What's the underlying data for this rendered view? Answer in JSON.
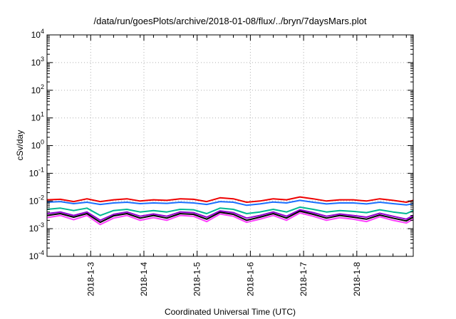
{
  "chart_data": {
    "type": "line",
    "title": "/data/run/goesPlots/archive/2018-01-08/flux/../bryn/7daysMars.plot",
    "xlabel": "Coordinated Universal Time (UTC)",
    "ylabel": "cSv/day",
    "y_scale": "log",
    "ylim": [
      0.0001,
      10000
    ],
    "y_ticks": [
      {
        "base": "10",
        "exp": "4"
      },
      {
        "base": "10",
        "exp": "3"
      },
      {
        "base": "10",
        "exp": "2"
      },
      {
        "base": "10",
        "exp": "1"
      },
      {
        "base": "10",
        "exp": "0"
      },
      {
        "base": "10",
        "exp": "-1"
      },
      {
        "base": "10",
        "exp": "-2"
      },
      {
        "base": "10",
        "exp": "-3"
      },
      {
        "base": "10",
        "exp": "-4"
      }
    ],
    "x_ticks": [
      "2018-1-3",
      "2018-1-4",
      "2018-1-5",
      "2018-1-6",
      "2018-1-7",
      "2018-1-8"
    ],
    "x_range_days": [
      0.0,
      6.88
    ],
    "x_tick_days": [
      0.82,
      1.82,
      2.82,
      3.82,
      4.82,
      5.82
    ],
    "grid": true,
    "legend": "none",
    "x": [
      0.0,
      0.25,
      0.5,
      0.75,
      1.0,
      1.25,
      1.5,
      1.75,
      2.0,
      2.25,
      2.5,
      2.75,
      3.0,
      3.25,
      3.5,
      3.75,
      4.0,
      4.25,
      4.5,
      4.75,
      5.0,
      5.25,
      5.5,
      5.75,
      6.0,
      6.25,
      6.5,
      6.75,
      6.88
    ],
    "series": [
      {
        "color": "#ee0000",
        "values": [
          0.011,
          0.0115,
          0.0095,
          0.012,
          0.0095,
          0.011,
          0.012,
          0.01,
          0.011,
          0.0105,
          0.012,
          0.0115,
          0.0095,
          0.013,
          0.012,
          0.009,
          0.01,
          0.012,
          0.011,
          0.014,
          0.012,
          0.01,
          0.011,
          0.011,
          0.01,
          0.012,
          0.0105,
          0.009,
          0.0105
        ]
      },
      {
        "color": "#1a6fff",
        "values": [
          0.009,
          0.0095,
          0.008,
          0.009,
          0.0075,
          0.0085,
          0.009,
          0.008,
          0.0085,
          0.0082,
          0.009,
          0.0085,
          0.0075,
          0.0095,
          0.009,
          0.007,
          0.0078,
          0.0092,
          0.0085,
          0.0105,
          0.009,
          0.0078,
          0.0085,
          0.0085,
          0.0078,
          0.009,
          0.008,
          0.0072,
          0.008
        ]
      },
      {
        "color": "#00b892",
        "values": [
          0.005,
          0.0055,
          0.0045,
          0.0055,
          0.003,
          0.0045,
          0.005,
          0.004,
          0.0045,
          0.004,
          0.005,
          0.0048,
          0.0035,
          0.0055,
          0.005,
          0.0035,
          0.004,
          0.005,
          0.004,
          0.006,
          0.005,
          0.004,
          0.0045,
          0.0042,
          0.0038,
          0.0048,
          0.004,
          0.0035,
          0.0045
        ]
      },
      {
        "color": "#9400d3",
        "values": [
          0.0035,
          0.004,
          0.003,
          0.004,
          0.002,
          0.0033,
          0.004,
          0.0028,
          0.0034,
          0.0028,
          0.004,
          0.0038,
          0.0026,
          0.0044,
          0.0038,
          0.0024,
          0.003,
          0.004,
          0.0028,
          0.0048,
          0.0038,
          0.0028,
          0.0034,
          0.003,
          0.0026,
          0.0036,
          0.0028,
          0.0022,
          0.003
        ]
      },
      {
        "color": "#000000",
        "values": [
          0.003,
          0.0035,
          0.0026,
          0.0035,
          0.0017,
          0.0029,
          0.0035,
          0.0024,
          0.003,
          0.0024,
          0.0035,
          0.0033,
          0.0022,
          0.0039,
          0.0033,
          0.002,
          0.0026,
          0.0035,
          0.0024,
          0.0043,
          0.0033,
          0.0024,
          0.003,
          0.0026,
          0.0022,
          0.0031,
          0.0024,
          0.0019,
          0.0026
        ]
      },
      {
        "color": "#ff40ff",
        "values": [
          0.0025,
          0.003,
          0.0021,
          0.003,
          0.0014,
          0.0024,
          0.003,
          0.002,
          0.0025,
          0.002,
          0.003,
          0.0028,
          0.0018,
          0.0034,
          0.0028,
          0.0017,
          0.0022,
          0.003,
          0.002,
          0.0037,
          0.0028,
          0.002,
          0.0025,
          0.0022,
          0.0018,
          0.0027,
          0.002,
          0.0016,
          0.0022
        ]
      }
    ]
  }
}
